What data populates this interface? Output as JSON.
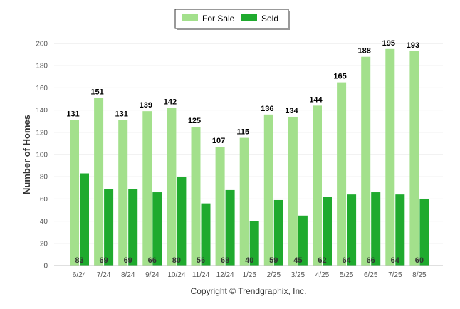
{
  "chart_data": {
    "type": "bar",
    "categories": [
      "6/24",
      "7/24",
      "8/24",
      "9/24",
      "10/24",
      "11/24",
      "12/24",
      "1/25",
      "2/25",
      "3/25",
      "4/25",
      "5/25",
      "6/25",
      "7/25",
      "8/25"
    ],
    "series": [
      {
        "name": "For Sale",
        "color": "#a3e08c",
        "values": [
          131,
          151,
          131,
          139,
          142,
          125,
          107,
          115,
          136,
          134,
          144,
          165,
          188,
          195,
          193
        ]
      },
      {
        "name": "Sold",
        "color": "#1faa2e",
        "values": [
          83,
          69,
          69,
          66,
          80,
          56,
          68,
          40,
          59,
          45,
          62,
          64,
          66,
          64,
          60
        ]
      }
    ],
    "ylabel": "Number of Homes",
    "ylim": [
      0,
      200
    ],
    "yticks": [
      0,
      20,
      40,
      60,
      80,
      100,
      120,
      140,
      160,
      180,
      200
    ],
    "grid": true,
    "legend": "top-center"
  },
  "footer": "Copyright © Trendgraphix, Inc."
}
